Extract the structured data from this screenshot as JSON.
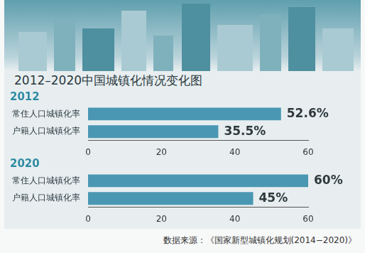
{
  "title": "2012–2020中国城镇化情况变化图",
  "source": "数据来源：《国家新型城镇化规划(2014−2020)》",
  "chart_data": [
    {
      "type": "bar",
      "orientation": "horizontal",
      "title": "2012",
      "categories": [
        "常住人口城镇化率",
        "户籍人口城镇化率"
      ],
      "values": [
        52.6,
        35.5
      ],
      "value_labels": [
        "52.6%",
        "35.5%"
      ],
      "data_labels": true,
      "color": "#4a97b3",
      "xlim": [
        0,
        60
      ],
      "xticks": [
        0,
        20,
        40,
        60
      ],
      "grid": false
    },
    {
      "type": "bar",
      "orientation": "horizontal",
      "title": "2020",
      "categories": [
        "常住人口城镇化率",
        "户籍人口城镇化率"
      ],
      "values": [
        60,
        45
      ],
      "value_labels": [
        "60%",
        "45%"
      ],
      "data_labels": true,
      "color": "#4a97b3",
      "xlim": [
        0,
        60
      ],
      "xticks": [
        0,
        20,
        40,
        60
      ],
      "grid": false
    }
  ]
}
